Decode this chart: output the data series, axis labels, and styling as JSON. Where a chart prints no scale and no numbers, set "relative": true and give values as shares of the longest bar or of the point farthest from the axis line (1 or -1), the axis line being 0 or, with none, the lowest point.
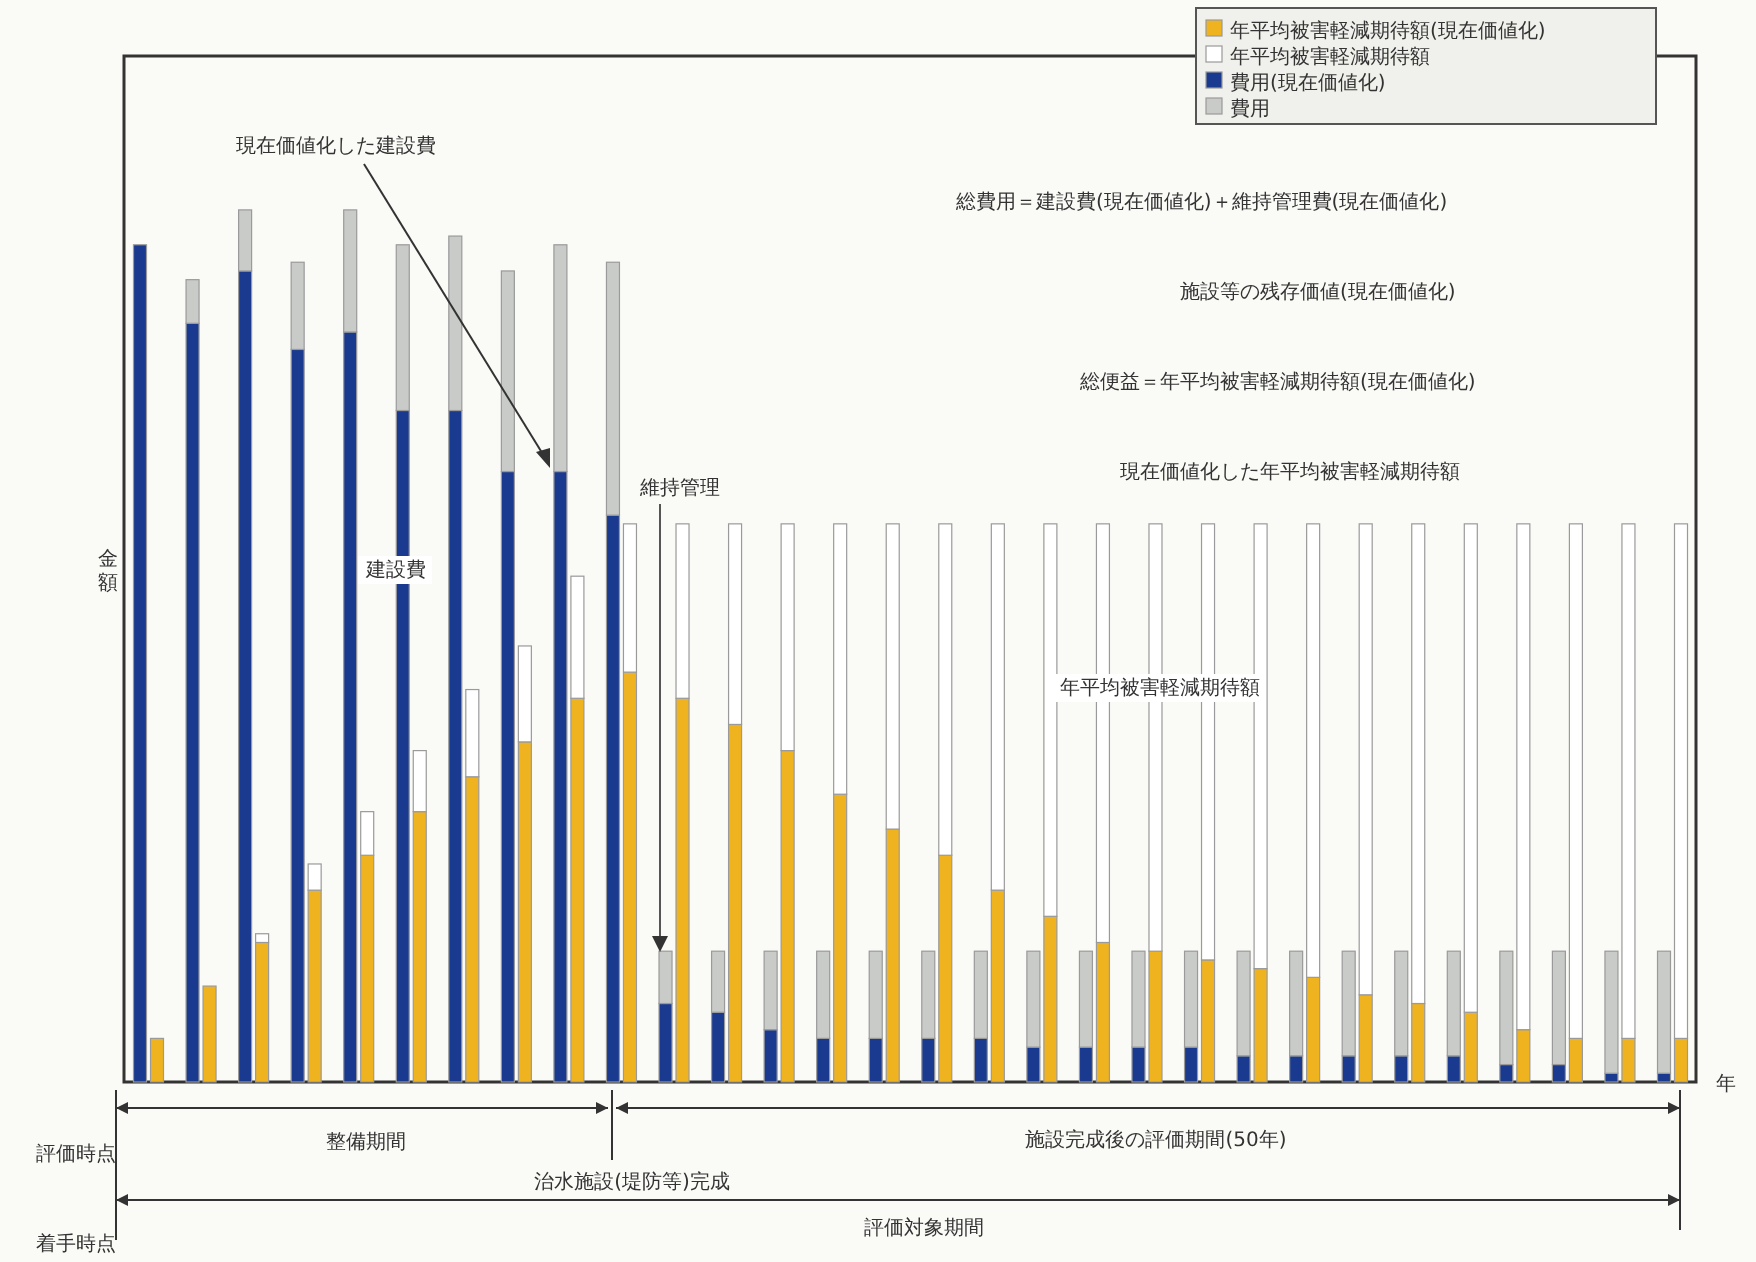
{
  "chart_data": {
    "type": "bar",
    "relative": true,
    "stacked": true,
    "legend": "top right",
    "xlabel": "年",
    "ylabel": "金額",
    "categories": [
      null,
      null,
      null,
      null,
      null,
      null,
      null,
      null,
      null,
      null,
      null,
      null,
      null,
      null,
      null,
      null,
      null,
      null,
      null,
      null,
      null,
      null,
      null,
      null,
      null,
      null,
      null,
      null,
      null,
      null,
      null,
      null,
      null,
      null,
      null,
      null,
      null,
      null,
      null,
      null,
      null,
      null,
      null,
      null,
      null,
      null,
      null,
      null,
      null,
      null,
      null,
      null,
      null,
      null,
      null,
      null,
      null,
      null,
      null,
      null
    ],
    "series": [
      {
        "name": "年平均被害軽減期待額(現在価値化)",
        "color": "#f0b320",
        "values": [
          null,
          0.05,
          null,
          0.11,
          null,
          0.16,
          null,
          0.22,
          null,
          0.26,
          null,
          0.31,
          null,
          0.35,
          null,
          0.39,
          null,
          0.44,
          null,
          0.47,
          null,
          0.44,
          null,
          0.41,
          null,
          0.38,
          null,
          0.33,
          null,
          0.29,
          null,
          0.26,
          null,
          0.22,
          null,
          0.19,
          null,
          0.16,
          null,
          0.15,
          null,
          0.14,
          null,
          0.13,
          null,
          0.12,
          null,
          0.1,
          null,
          0.09,
          null,
          0.08,
          null,
          0.06,
          null,
          0.05,
          null,
          0.05,
          null,
          0.05
        ]
      },
      {
        "name": "年平均被害軽減期待額",
        "color": "#ffffff",
        "values": [
          null,
          0,
          null,
          0,
          null,
          0.01,
          null,
          0.03,
          null,
          0.05,
          null,
          0.07,
          null,
          0.1,
          null,
          0.11,
          null,
          0.14,
          null,
          0.17,
          null,
          0.2,
          null,
          0.23,
          null,
          0.26,
          null,
          0.31,
          null,
          0.35,
          null,
          0.38,
          null,
          0.42,
          null,
          0.45,
          null,
          0.48,
          null,
          0.49,
          null,
          0.5,
          null,
          0.51,
          null,
          0.52,
          null,
          0.54,
          null,
          0.55,
          null,
          0.56,
          null,
          0.58,
          null,
          0.59,
          null,
          0.59,
          null,
          0.59
        ]
      },
      {
        "name": "費用(現在価値化)",
        "color": "#1a3a8f",
        "values": [
          0.96,
          null,
          0.87,
          null,
          0.93,
          null,
          0.84,
          null,
          0.86,
          null,
          0.77,
          null,
          0.77,
          null,
          0.7,
          null,
          0.7,
          null,
          0.65,
          null,
          0.09,
          null,
          0.08,
          null,
          0.06,
          null,
          0.05,
          null,
          0.05,
          null,
          0.05,
          null,
          0.05,
          null,
          0.04,
          null,
          0.04,
          null,
          0.04,
          null,
          0.04,
          null,
          0.03,
          null,
          0.03,
          null,
          0.03,
          null,
          0.03,
          null,
          0.03,
          null,
          0.02,
          null,
          0.02,
          null,
          0.01,
          null,
          0.01,
          null
        ]
      },
      {
        "name": "費用",
        "color": "#c8cbc8",
        "values": [
          0,
          null,
          0.05,
          null,
          0.07,
          null,
          0.1,
          null,
          0.14,
          null,
          0.19,
          null,
          0.2,
          null,
          0.23,
          null,
          0.26,
          null,
          0.29,
          null,
          0.06,
          null,
          0.07,
          null,
          0.09,
          null,
          0.1,
          null,
          0.1,
          null,
          0.1,
          null,
          0.1,
          null,
          0.11,
          null,
          0.11,
          null,
          0.11,
          null,
          0.11,
          null,
          0.12,
          null,
          0.12,
          null,
          0.12,
          null,
          0.12,
          null,
          0.12,
          null,
          0.13,
          null,
          0.13,
          null,
          0.14,
          null,
          0.14,
          null
        ]
      }
    ],
    "annotations": [
      "現在価値化した建設費",
      "総費用＝建設費(現在価値化)＋維持管理費(現在価値化)",
      "施設等の残存価値(現在価値化)",
      "総便益＝年平均被害軽減期待額(現在価値化)",
      "現在価値化した年平均被害軽減期待額",
      "建設費",
      "維持管理",
      "年平均被害軽減期待額",
      "評価時点",
      "整備期間",
      "施設完成後の評価期間(50年)",
      "治水施設(堤防等)完成",
      "着手時点",
      "評価対象期間"
    ]
  }
}
